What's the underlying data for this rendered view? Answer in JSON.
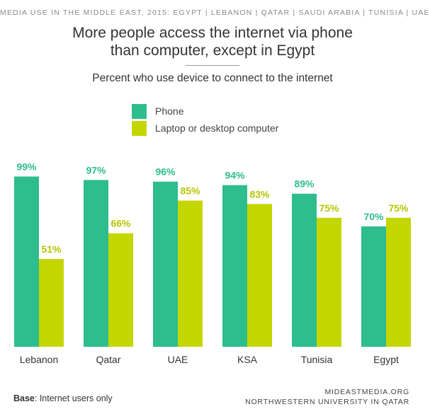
{
  "header": {
    "topline": "MEDIA USE IN THE MIDDLE EAST, 2015: EGYPT | LEBANON | QATAR | SAUDI ARABIA | TUNISIA | UAE",
    "title_line1": "More people access the internet via phone",
    "title_line2": "than computer, except in Egypt",
    "subtitle": "Percent who use device to connect to the internet"
  },
  "legend": {
    "items": [
      {
        "label": "Phone",
        "color": "#2ebd8c"
      },
      {
        "label": "Laptop or desktop computer",
        "color": "#c4d600"
      }
    ]
  },
  "footer": {
    "base_label": "Base",
    "base_text": ": Internet users only",
    "source_line1": "MIDEASTMEDIA.ORG",
    "source_line2": "NORTHWESTERN UNIVERSITY IN QATAR"
  },
  "chart_data": {
    "type": "bar",
    "categories": [
      "Lebanon",
      "Qatar",
      "UAE",
      "KSA",
      "Tunisia",
      "Egypt"
    ],
    "series": [
      {
        "name": "Phone",
        "values": [
          99,
          97,
          96,
          94,
          89,
          70
        ],
        "color": "#2ebd8c",
        "label_color": "#2ebd8c"
      },
      {
        "name": "Laptop or desktop computer",
        "values": [
          51,
          66,
          85,
          83,
          75,
          75
        ],
        "color": "#c4d600",
        "label_color": "#b5c600"
      }
    ],
    "value_suffix": "%",
    "ylim": [
      0,
      100
    ],
    "grid": false,
    "legend_position": "top-left"
  }
}
